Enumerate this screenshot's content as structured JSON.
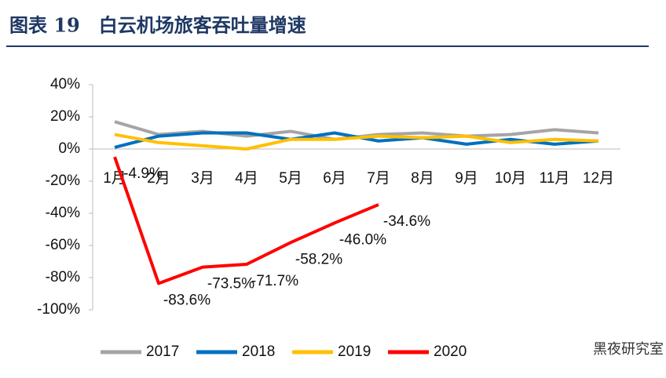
{
  "chart_data": {
    "type": "line",
    "title": "图表 19　白云机场旅客吞吐量增速",
    "categories": [
      "1月",
      "2月",
      "3月",
      "4月",
      "5月",
      "6月",
      "7月",
      "8月",
      "9月",
      "10月",
      "11月",
      "12月"
    ],
    "series": [
      {
        "name": "2017",
        "color": "#a5a5a5",
        "values": [
          17,
          9,
          11,
          8,
          11,
          6,
          9,
          10,
          8,
          9,
          12,
          10
        ]
      },
      {
        "name": "2018",
        "color": "#0070c0",
        "values": [
          1,
          8,
          10,
          10,
          6,
          10,
          5,
          7,
          3,
          6,
          3,
          5
        ]
      },
      {
        "name": "2019",
        "color": "#ffc000",
        "values": [
          9,
          4,
          2,
          0,
          6,
          6,
          8,
          7,
          8,
          4,
          6,
          5
        ]
      },
      {
        "name": "2020",
        "color": "#ff0000",
        "values": [
          -4.9,
          -83.6,
          -73.5,
          -71.7,
          -58.2,
          -46.0,
          -34.6,
          null,
          null,
          null,
          null,
          null
        ],
        "value_labels": [
          "-4.9%",
          "-83.6%",
          "-73.5%",
          "-71.7%",
          "-58.2%",
          "-46.0%",
          "-34.6%",
          null,
          null,
          null,
          null,
          null
        ]
      }
    ],
    "ylim": [
      -100,
      40
    ],
    "yticks": [
      {
        "value": -100,
        "label": "-100%"
      },
      {
        "value": -80,
        "label": "-80%"
      },
      {
        "value": -60,
        "label": "-60%"
      },
      {
        "value": -40,
        "label": "-40%"
      },
      {
        "value": -20,
        "label": "-20%"
      },
      {
        "value": 0,
        "label": "0%"
      },
      {
        "value": 20,
        "label": "20%"
      },
      {
        "value": 40,
        "label": "40%"
      }
    ],
    "legend": "bottom",
    "watermark": "黑夜研究室"
  }
}
